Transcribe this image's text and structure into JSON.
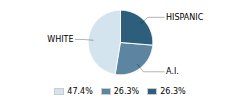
{
  "chart_data": {
    "type": "pie",
    "categories": [
      "WHITE",
      "A.I.",
      "HISPANIC"
    ],
    "values": [
      47.4,
      26.3,
      26.3
    ],
    "value_labels": [
      "47.4%",
      "26.3%",
      "26.3%"
    ],
    "colors": [
      "#d4e4ee",
      "#5b85a0",
      "#2d5f7c"
    ],
    "legend": "bottom"
  }
}
